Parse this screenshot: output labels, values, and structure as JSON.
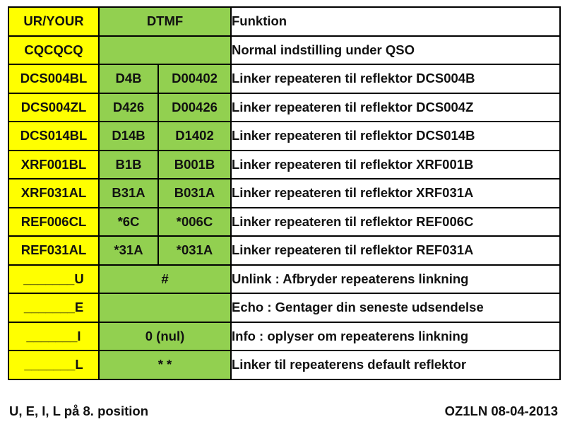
{
  "table": {
    "header": {
      "ur": "UR/YOUR",
      "dtmf": "DTMF",
      "function": "Funktion"
    },
    "rows": [
      {
        "ur": "CQCQCQ",
        "dtmf": "",
        "function": "Normal indstilling under QSO"
      },
      {
        "ur": "DCS004BL",
        "dtmf1": "D4B",
        "dtmf2": "D00402",
        "function": "Linker repeateren til reflektor DCS004B"
      },
      {
        "ur": "DCS004ZL",
        "dtmf1": "D426",
        "dtmf2": "D00426",
        "function": "Linker repeateren til reflektor DCS004Z"
      },
      {
        "ur": "DCS014BL",
        "dtmf1": "D14B",
        "dtmf2": "D1402",
        "function": "Linker repeateren til reflektor DCS014B"
      },
      {
        "ur": "XRF001BL",
        "dtmf1": "B1B",
        "dtmf2": "B001B",
        "function": "Linker repeateren til reflektor XRF001B"
      },
      {
        "ur": "XRF031AL",
        "dtmf1": "B31A",
        "dtmf2": "B031A",
        "function": "Linker repeateren til reflektor XRF031A"
      },
      {
        "ur": "REF006CL",
        "dtmf1": "*6C",
        "dtmf2": "*006C",
        "function": "Linker repeateren til reflektor REF006C"
      },
      {
        "ur": "REF031AL",
        "dtmf1": "*31A",
        "dtmf2": "*031A",
        "function": "Linker repeateren til reflektor REF031A"
      },
      {
        "ur": "_______U",
        "dtmf": "#",
        "function": "Unlink : Afbryder repeaterens linkning"
      },
      {
        "ur": "_______E",
        "dtmf": "",
        "function": "Echo : Gentager din seneste udsendelse"
      },
      {
        "ur": "_______I",
        "dtmf": "0 (nul)",
        "function": "Info : oplyser om repeaterens linkning"
      },
      {
        "ur": "_______L",
        "dtmf": "*  *",
        "function": "Linker til repeaterens default reflektor"
      }
    ]
  },
  "footer": {
    "left": "U, E, I, L på 8. position",
    "right": "OZ1LN  08-04-2013"
  },
  "colors": {
    "ur_column": "#ffff00",
    "dtmf_column": "#92d050",
    "function_column": "#ffffff"
  }
}
